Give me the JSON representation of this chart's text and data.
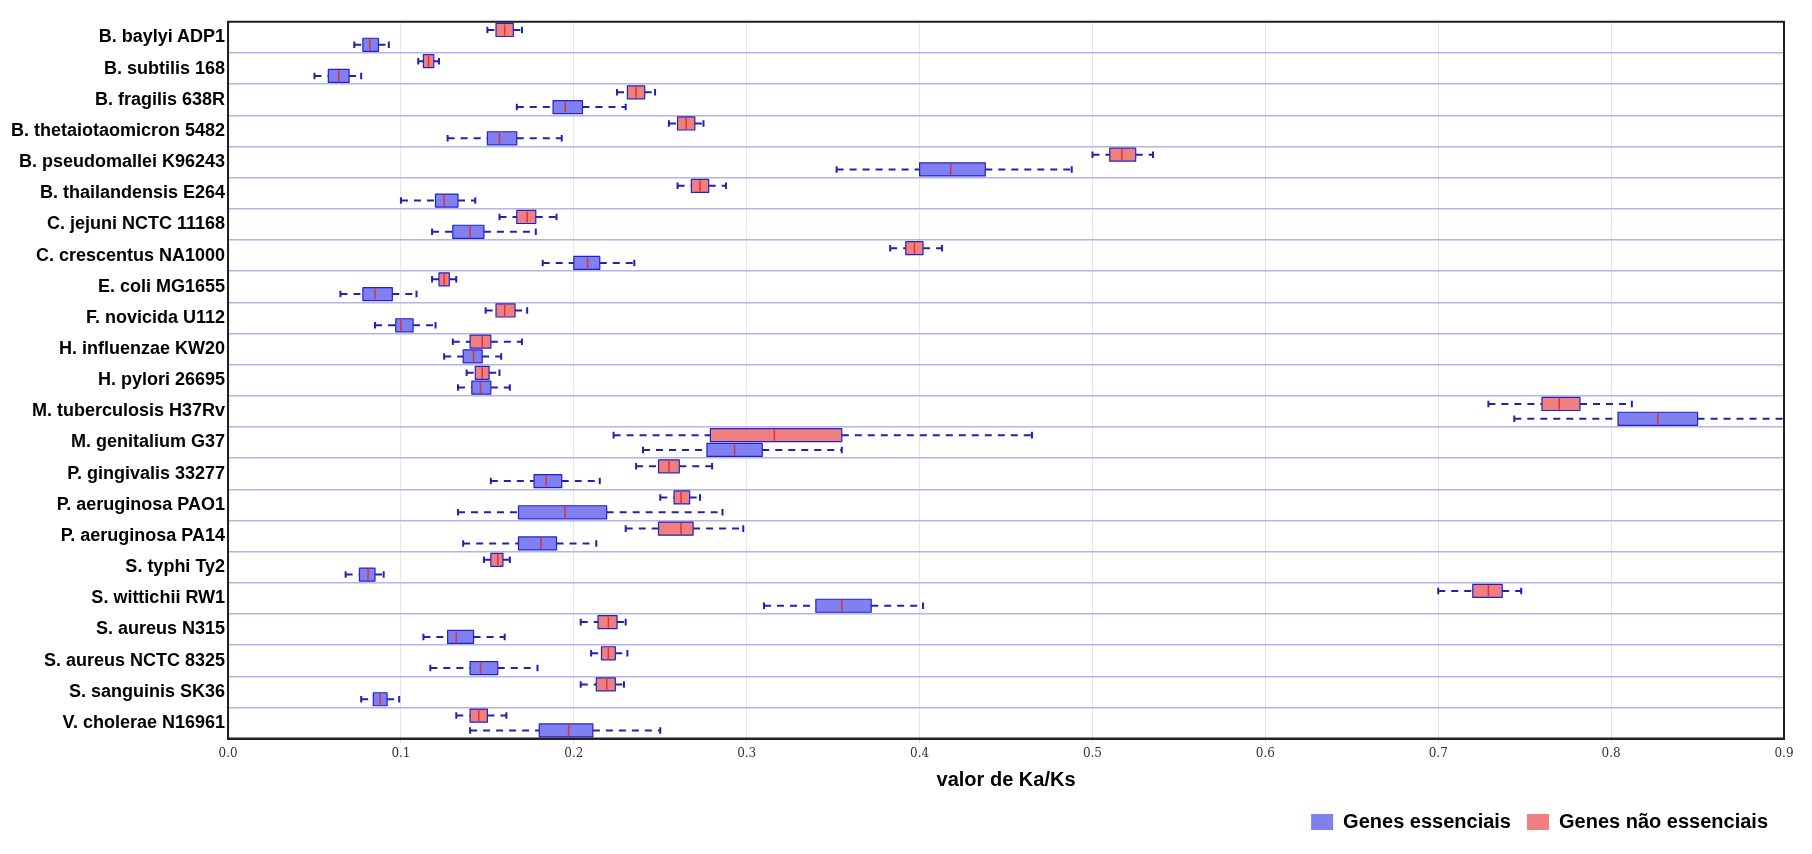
{
  "chart_data": {
    "type": "box",
    "orientation": "horizontal",
    "xlabel": "valor de Ka/Ks",
    "categories": [
      "B. baylyi ADP1",
      "B. subtilis 168",
      "B. fragilis 638R",
      "B. thetaiotaomicron 5482",
      "B. pseudomallei K96243",
      "B. thailandensis E264",
      "C. jejuni NCTC 11168",
      "C. crescentus NA1000",
      "E. coli MG1655",
      "F. novicida U112",
      "H. influenzae KW20",
      "H. pylori 26695",
      "M. tuberculosis H37Rv",
      "M. genitalium G37",
      "P. gingivalis 33277",
      "P. aeruginosa PAO1",
      "P. aeruginosa PA14",
      "S. typhi Ty2",
      "S. wittichii RW1",
      "S. aureus N315",
      "S. aureus NCTC 8325",
      "S. sanguinis SK36",
      "V. cholerae N16961"
    ],
    "xlim": [
      0,
      0.9
    ],
    "xticks": [
      {
        "value": 0,
        "label": "0.0"
      },
      0.1,
      0.2,
      0.3,
      0.4,
      0.5,
      0.6,
      0.7,
      0.8,
      {
        "value": 0.9,
        "label": "0.9"
      }
    ],
    "grid": true,
    "legend": "bottom right",
    "line_style": "dashed",
    "series": [
      {
        "name": "Genes não essenciais",
        "color": "#f08080",
        "boxes": [
          {
            "low": 0.15,
            "q1": 0.155,
            "median": 0.16,
            "q3": 0.165,
            "high": 0.17
          },
          {
            "low": 0.11,
            "q1": 0.113,
            "median": 0.116,
            "q3": 0.119,
            "high": 0.122
          },
          {
            "low": 0.225,
            "q1": 0.231,
            "median": 0.236,
            "q3": 0.241,
            "high": 0.247
          },
          {
            "low": 0.255,
            "q1": 0.26,
            "median": 0.265,
            "q3": 0.27,
            "high": 0.275
          },
          {
            "low": 0.5,
            "q1": 0.51,
            "median": 0.517,
            "q3": 0.525,
            "high": 0.535
          },
          {
            "low": 0.26,
            "q1": 0.268,
            "median": 0.273,
            "q3": 0.278,
            "high": 0.288
          },
          {
            "low": 0.157,
            "q1": 0.167,
            "median": 0.173,
            "q3": 0.178,
            "high": 0.19
          },
          {
            "low": 0.383,
            "q1": 0.392,
            "median": 0.397,
            "q3": 0.402,
            "high": 0.413
          },
          {
            "low": 0.118,
            "q1": 0.122,
            "median": 0.125,
            "q3": 0.128,
            "high": 0.132
          },
          {
            "low": 0.149,
            "q1": 0.155,
            "median": 0.16,
            "q3": 0.166,
            "high": 0.173
          },
          {
            "low": 0.13,
            "q1": 0.14,
            "median": 0.147,
            "q3": 0.152,
            "high": 0.17
          },
          {
            "low": 0.138,
            "q1": 0.143,
            "median": 0.147,
            "q3": 0.151,
            "high": 0.157
          },
          {
            "low": 0.729,
            "q1": 0.76,
            "median": 0.77,
            "q3": 0.782,
            "high": 0.812
          },
          {
            "low": 0.223,
            "q1": 0.279,
            "median": 0.316,
            "q3": 0.355,
            "high": 0.465
          },
          {
            "low": 0.236,
            "q1": 0.249,
            "median": 0.255,
            "q3": 0.261,
            "high": 0.28
          },
          {
            "low": 0.25,
            "q1": 0.258,
            "median": 0.262,
            "q3": 0.267,
            "high": 0.273
          },
          {
            "low": 0.23,
            "q1": 0.249,
            "median": 0.262,
            "q3": 0.269,
            "high": 0.298
          },
          {
            "low": 0.148,
            "q1": 0.152,
            "median": 0.156,
            "q3": 0.159,
            "high": 0.163
          },
          {
            "low": 0.7,
            "q1": 0.72,
            "median": 0.729,
            "q3": 0.737,
            "high": 0.748
          },
          {
            "low": 0.204,
            "q1": 0.214,
            "median": 0.22,
            "q3": 0.225,
            "high": 0.23
          },
          {
            "low": 0.21,
            "q1": 0.216,
            "median": 0.22,
            "q3": 0.224,
            "high": 0.231
          },
          {
            "low": 0.204,
            "q1": 0.213,
            "median": 0.219,
            "q3": 0.224,
            "high": 0.229
          },
          {
            "low": 0.132,
            "q1": 0.14,
            "median": 0.145,
            "q3": 0.15,
            "high": 0.161
          }
        ]
      },
      {
        "name": "Genes essenciais",
        "color": "#8080f0",
        "boxes": [
          {
            "low": 0.073,
            "q1": 0.078,
            "median": 0.082,
            "q3": 0.087,
            "high": 0.093
          },
          {
            "low": 0.05,
            "q1": 0.058,
            "median": 0.064,
            "q3": 0.07,
            "high": 0.077
          },
          {
            "low": 0.167,
            "q1": 0.188,
            "median": 0.195,
            "q3": 0.205,
            "high": 0.23
          },
          {
            "low": 0.127,
            "q1": 0.15,
            "median": 0.157,
            "q3": 0.167,
            "high": 0.193
          },
          {
            "low": 0.352,
            "q1": 0.4,
            "median": 0.418,
            "q3": 0.438,
            "high": 0.488
          },
          {
            "low": 0.1,
            "q1": 0.12,
            "median": 0.125,
            "q3": 0.133,
            "high": 0.143
          },
          {
            "low": 0.118,
            "q1": 0.13,
            "median": 0.14,
            "q3": 0.148,
            "high": 0.178
          },
          {
            "low": 0.182,
            "q1": 0.2,
            "median": 0.208,
            "q3": 0.215,
            "high": 0.235
          },
          {
            "low": 0.065,
            "q1": 0.078,
            "median": 0.085,
            "q3": 0.095,
            "high": 0.109
          },
          {
            "low": 0.085,
            "q1": 0.097,
            "median": 0.1,
            "q3": 0.107,
            "high": 0.12
          },
          {
            "low": 0.125,
            "q1": 0.136,
            "median": 0.142,
            "q3": 0.147,
            "high": 0.158
          },
          {
            "low": 0.133,
            "q1": 0.141,
            "median": 0.146,
            "q3": 0.152,
            "high": 0.163
          },
          {
            "low": 0.744,
            "q1": 0.804,
            "median": 0.827,
            "q3": 0.85,
            "high": 0.9
          },
          {
            "low": 0.24,
            "q1": 0.277,
            "median": 0.293,
            "q3": 0.309,
            "high": 0.355
          },
          {
            "low": 0.152,
            "q1": 0.177,
            "median": 0.184,
            "q3": 0.193,
            "high": 0.215
          },
          {
            "low": 0.133,
            "q1": 0.168,
            "median": 0.195,
            "q3": 0.219,
            "high": 0.286
          },
          {
            "low": 0.136,
            "q1": 0.168,
            "median": 0.181,
            "q3": 0.19,
            "high": 0.213
          },
          {
            "low": 0.068,
            "q1": 0.076,
            "median": 0.081,
            "q3": 0.085,
            "high": 0.09
          },
          {
            "low": 0.31,
            "q1": 0.34,
            "median": 0.355,
            "q3": 0.372,
            "high": 0.402
          },
          {
            "low": 0.113,
            "q1": 0.127,
            "median": 0.132,
            "q3": 0.142,
            "high": 0.16
          },
          {
            "low": 0.117,
            "q1": 0.14,
            "median": 0.146,
            "q3": 0.156,
            "high": 0.179
          },
          {
            "low": 0.077,
            "q1": 0.084,
            "median": 0.088,
            "q3": 0.092,
            "high": 0.099
          },
          {
            "low": 0.14,
            "q1": 0.18,
            "median": 0.197,
            "q3": 0.211,
            "high": 0.25
          }
        ]
      }
    ]
  }
}
